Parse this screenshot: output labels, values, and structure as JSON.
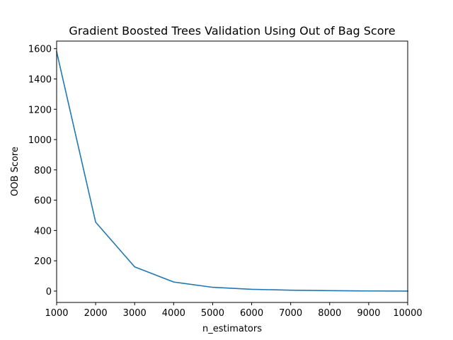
{
  "chart_data": {
    "type": "line",
    "title": "Gradient Boosted Trees Validation Using Out of Bag Score",
    "xlabel": "n_estimators",
    "ylabel": "OOB Score",
    "xlim": [
      1000,
      10000
    ],
    "ylim": [
      -75,
      1650
    ],
    "xticks": [
      1000,
      2000,
      3000,
      4000,
      5000,
      6000,
      7000,
      8000,
      9000,
      10000
    ],
    "yticks": [
      0,
      200,
      400,
      600,
      800,
      1000,
      1200,
      1400,
      1600
    ],
    "grid": false,
    "series": [
      {
        "color": "#1f77b4",
        "x": [
          1000,
          2000,
          3000,
          4000,
          5000,
          6000,
          7000,
          8000,
          9000,
          10000
        ],
        "y": [
          1580,
          455,
          160,
          60,
          25,
          12,
          6,
          3,
          1,
          0
        ]
      }
    ]
  }
}
